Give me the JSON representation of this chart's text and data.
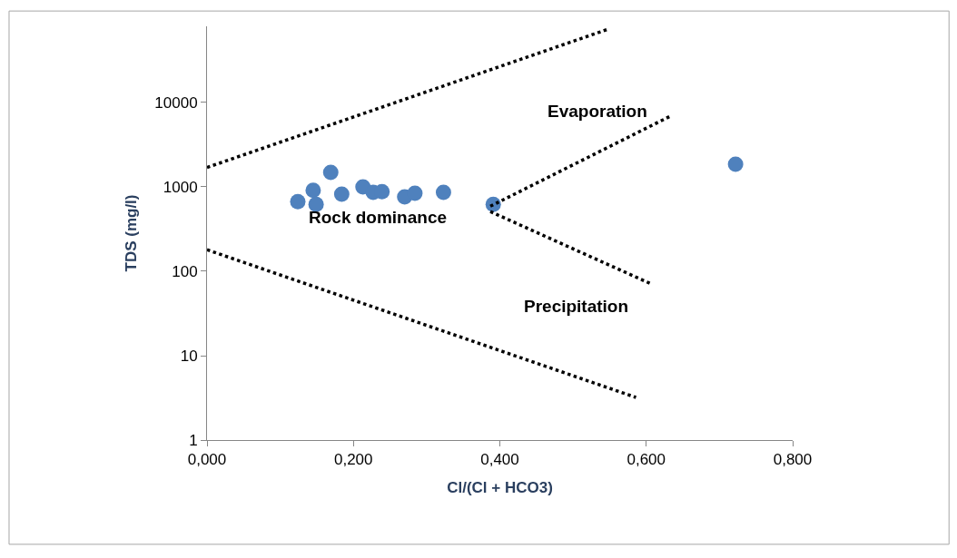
{
  "chart_data": {
    "type": "scatter",
    "xlabel": "Cl/(Cl + HCO3)",
    "ylabel": "TDS (mg/l)",
    "log": "y",
    "marker": "circle",
    "xlim": [
      0,
      0.8
    ],
    "xticks": [
      {
        "value": 0,
        "label": "0,000"
      },
      {
        "value": 0.2,
        "label": "0,200"
      },
      {
        "value": 0.4,
        "label": "0,400"
      },
      {
        "value": 0.6,
        "label": "0,600"
      },
      {
        "value": 0.8,
        "label": "0,800"
      }
    ],
    "ylim": [
      1,
      80000
    ],
    "yticks": [
      1,
      10,
      100,
      1000,
      10000
    ],
    "series": [
      {
        "color": "#4f81bd",
        "x": [
          0.124,
          0.145,
          0.149,
          0.169,
          0.184,
          0.213,
          0.227,
          0.239,
          0.27,
          0.284,
          0.323,
          0.391,
          0.722
        ],
        "values": [
          670,
          910,
          620,
          1490,
          820,
          1000,
          860,
          880,
          760,
          840,
          860,
          620,
          1860
        ]
      },
      {
        "type": "line",
        "color": "#000000",
        "line_style": "dotted",
        "marker": "none",
        "x": [
          0,
          0.548
        ],
        "values": [
          1700,
          74000
        ]
      },
      {
        "type": "line",
        "color": "#000000",
        "line_style": "dotted",
        "marker": "none",
        "x": [
          0,
          0.586
        ],
        "values": [
          180,
          3.2
        ]
      },
      {
        "type": "line",
        "color": "#000000",
        "line_style": "dotted",
        "marker": "none",
        "x": [
          0.387,
          0.633
        ],
        "values": [
          590,
          6900
        ]
      },
      {
        "type": "line",
        "color": "#000000",
        "line_style": "dotted",
        "marker": "none",
        "x": [
          0.387,
          0.608
        ],
        "values": [
          510,
          70
        ]
      }
    ],
    "annotations": [
      "Evaporation",
      "Rock dominance",
      "Precipitation"
    ]
  }
}
